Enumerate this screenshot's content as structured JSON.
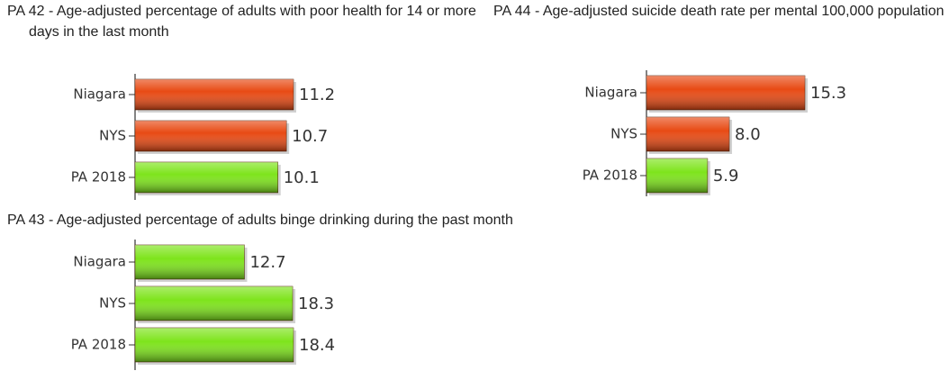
{
  "chart_data": [
    {
      "type": "bar",
      "orientation": "horizontal",
      "title": "PA 42 - Age-adjusted percentage of adults with poor health for 14 or more days in the last month",
      "categories": [
        "Niagara",
        "NYS",
        "PA 2018"
      ],
      "values": [
        11.2,
        10.7,
        10.1
      ],
      "value_labels": [
        "11.2",
        "10.7",
        "10.1"
      ],
      "colors": [
        "#e84a14",
        "#e84a14",
        "#7ee41c"
      ]
    },
    {
      "type": "bar",
      "orientation": "horizontal",
      "title": "PA 44 - Age-adjusted suicide death rate per mental 100,000 population",
      "categories": [
        "Niagara",
        "NYS",
        "PA 2018"
      ],
      "values": [
        15.3,
        8.0,
        5.9
      ],
      "value_labels": [
        "15.3",
        "8.0",
        "5.9"
      ],
      "colors": [
        "#e84a14",
        "#e84a14",
        "#7ee41c"
      ]
    },
    {
      "type": "bar",
      "orientation": "horizontal",
      "title": "PA 43 - Age-adjusted percentage of adults binge drinking during the past month",
      "categories": [
        "Niagara",
        "NYS",
        "PA 2018"
      ],
      "values": [
        12.7,
        18.3,
        18.4
      ],
      "value_labels": [
        "12.7",
        "18.3",
        "18.4"
      ],
      "colors": [
        "#7ee41c",
        "#7ee41c",
        "#7ee41c"
      ]
    }
  ]
}
